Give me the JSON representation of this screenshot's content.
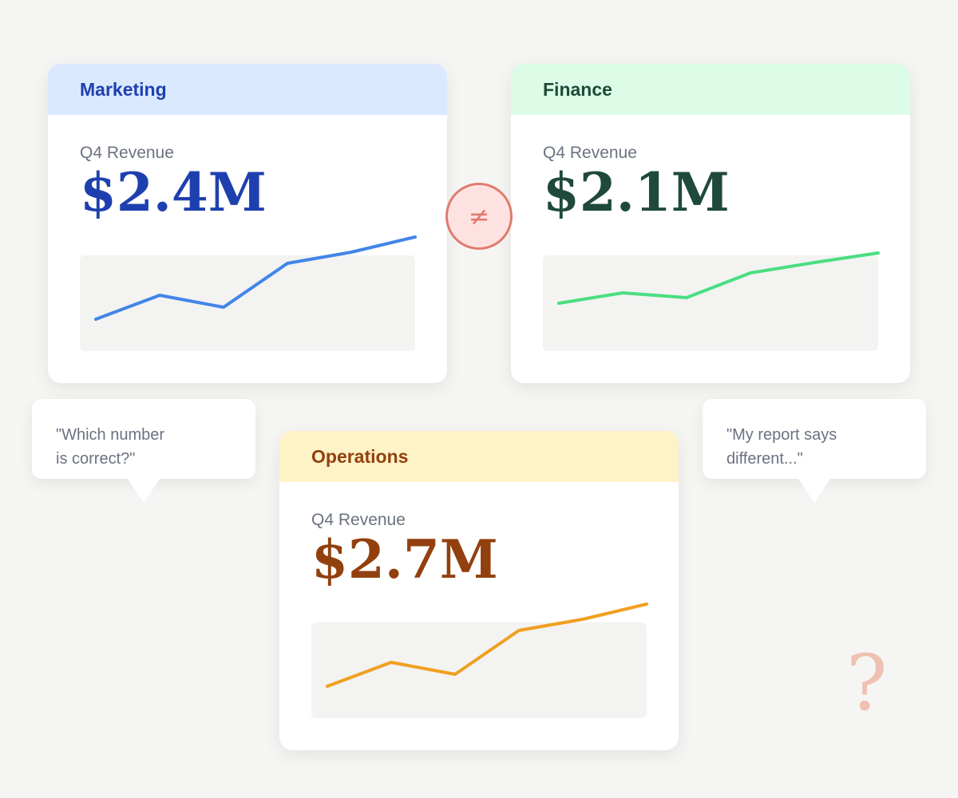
{
  "cards": {
    "marketing": {
      "title": "Marketing",
      "metric_label": "Q4 Revenue",
      "metric_value": "$2.4M",
      "trend": [
        0.22,
        0.52,
        0.37,
        0.92,
        1.06,
        1.25
      ],
      "color": "#4285e8"
    },
    "finance": {
      "title": "Finance",
      "metric_label": "Q4 Revenue",
      "metric_value": "$2.1M",
      "trend": [
        0.42,
        0.55,
        0.49,
        0.8,
        0.93,
        1.05
      ],
      "color": "#4ade80"
    },
    "operations": {
      "title": "Operations",
      "metric_label": "Q4 Revenue",
      "metric_value": "$2.7M",
      "trend": [
        0.22,
        0.52,
        0.37,
        0.92,
        1.06,
        1.25
      ],
      "color": "#f0a020"
    }
  },
  "comparison_symbol": "≠",
  "bubbles": {
    "left": "\"Which number\nis correct?\"",
    "right": "\"My report says\ndifferent...\""
  },
  "decoration": {
    "question_mark": "?"
  }
}
